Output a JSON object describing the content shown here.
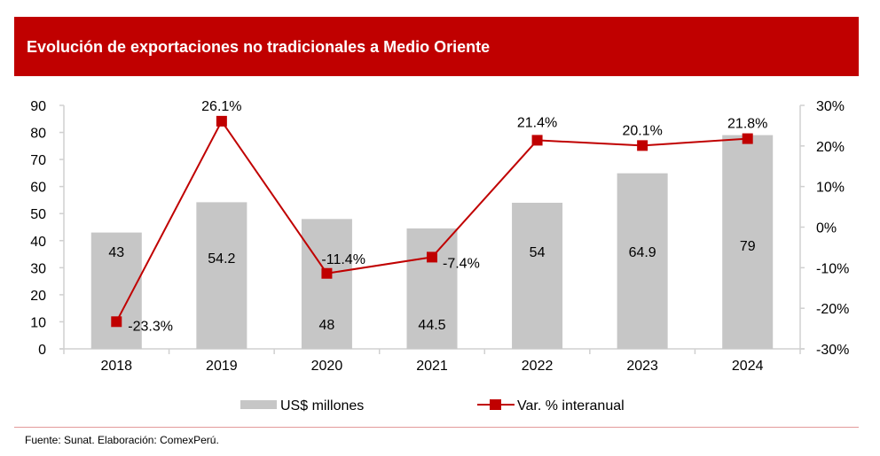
{
  "title": "Evolución de exportaciones no tradicionales a Medio Oriente",
  "source": "Fuente: Sunat. Elaboración: ComexPerú.",
  "colors": {
    "header": "#c00000",
    "bar": "#c6c6c6",
    "line": "#c00000",
    "axis": "#d0d0d0"
  },
  "chart_data": {
    "type": "bar",
    "title": "Evolución de exportaciones no tradicionales a Medio Oriente",
    "categories": [
      "2018",
      "2019",
      "2020",
      "2021",
      "2022",
      "2023",
      "2024"
    ],
    "series": [
      {
        "name": "US$ millones",
        "type": "bar",
        "axis": "left",
        "values": [
          43,
          54.2,
          48,
          44.5,
          54,
          64.9,
          79
        ],
        "labels": [
          "43",
          "54.2",
          "48",
          "44.5",
          "54",
          "64.9",
          "79"
        ]
      },
      {
        "name": "Var. % interanual",
        "type": "line",
        "axis": "right",
        "values": [
          -23.3,
          26.1,
          -11.4,
          -7.4,
          21.4,
          20.1,
          21.8
        ],
        "labels": [
          "-23.3%",
          "26.1%",
          "-11.4%",
          "-7.4%",
          "21.4%",
          "20.1%",
          "21.8%"
        ]
      }
    ],
    "y_left": {
      "min": 0,
      "max": 90,
      "step": 10,
      "ticks": [
        "0",
        "10",
        "20",
        "30",
        "40",
        "50",
        "60",
        "70",
        "80",
        "90"
      ]
    },
    "y_right": {
      "min": -30,
      "max": 30,
      "step": 10,
      "ticks": [
        "-30%",
        "-20%",
        "-10%",
        "0%",
        "10%",
        "20%",
        "30%"
      ]
    },
    "xlabel": "",
    "ylabel": "",
    "grid": false,
    "legend": {
      "position": "bottom",
      "items": [
        "US$ millones",
        "Var. % interanual"
      ]
    }
  }
}
